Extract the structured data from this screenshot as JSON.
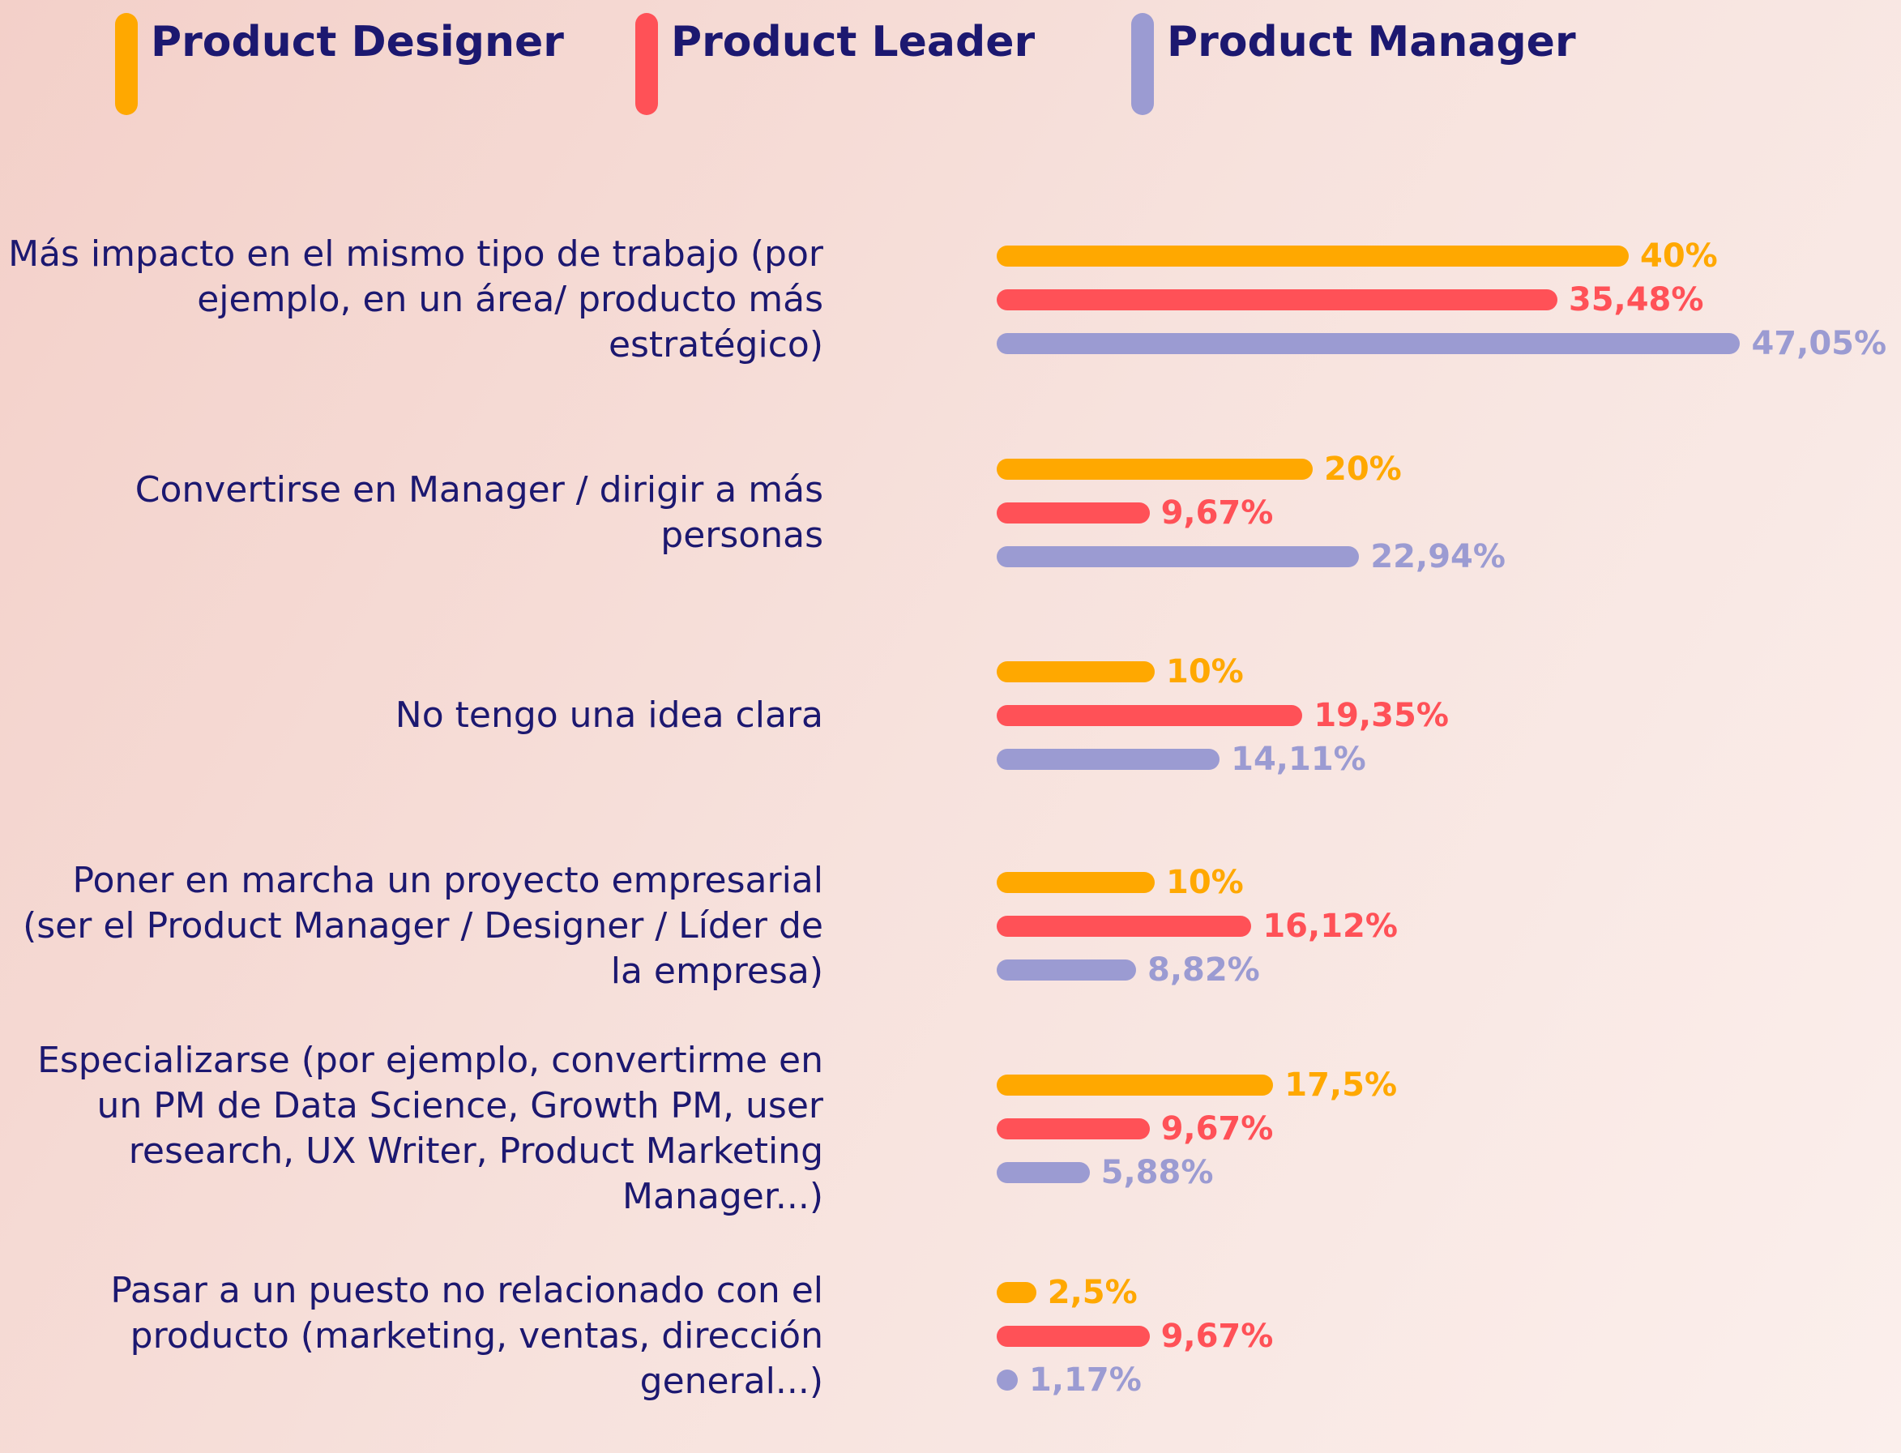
{
  "chart_data": {
    "type": "bar",
    "orientation": "horizontal",
    "categories": [
      "Más impacto en el mismo tipo de trabajo (por ejemplo, en un área/ producto más estratégico)",
      "Convertirse en Manager / dirigir a más personas",
      "No tengo una idea clara",
      "Poner en marcha un proyecto empresarial (ser el Product Manager / Designer / Líder de la empresa)",
      "Especializarse (por ejemplo, convertirme en un PM de Data Science, Growth PM, user research, UX Writer, Product Marketing Manager...)",
      "Pasar a un puesto no relacionado con el producto (marketing, ventas, dirección general...)"
    ],
    "series": [
      {
        "name": "Product Designer",
        "color": "#ffa800",
        "values": [
          40,
          20,
          10,
          10,
          17.5,
          2.5
        ],
        "value_labels": [
          "40%",
          "20%",
          "10%",
          "10%",
          "17,5%",
          "2,5%"
        ]
      },
      {
        "name": "Product Leader",
        "color": "#ff5157",
        "values": [
          35.48,
          9.67,
          19.35,
          16.12,
          9.67,
          9.67
        ],
        "value_labels": [
          "35,48%",
          "9,67%",
          "19,35%",
          "16,12%",
          "9,67%",
          "9,67%"
        ]
      },
      {
        "name": "Product Manager",
        "color": "#9b9bd2",
        "values": [
          47.05,
          22.94,
          14.11,
          8.82,
          5.88,
          1.17
        ],
        "value_labels": [
          "47,05%",
          "22,94%",
          "14,11%",
          "8,82%",
          "5,88%",
          "1,17%"
        ]
      }
    ]
  }
}
